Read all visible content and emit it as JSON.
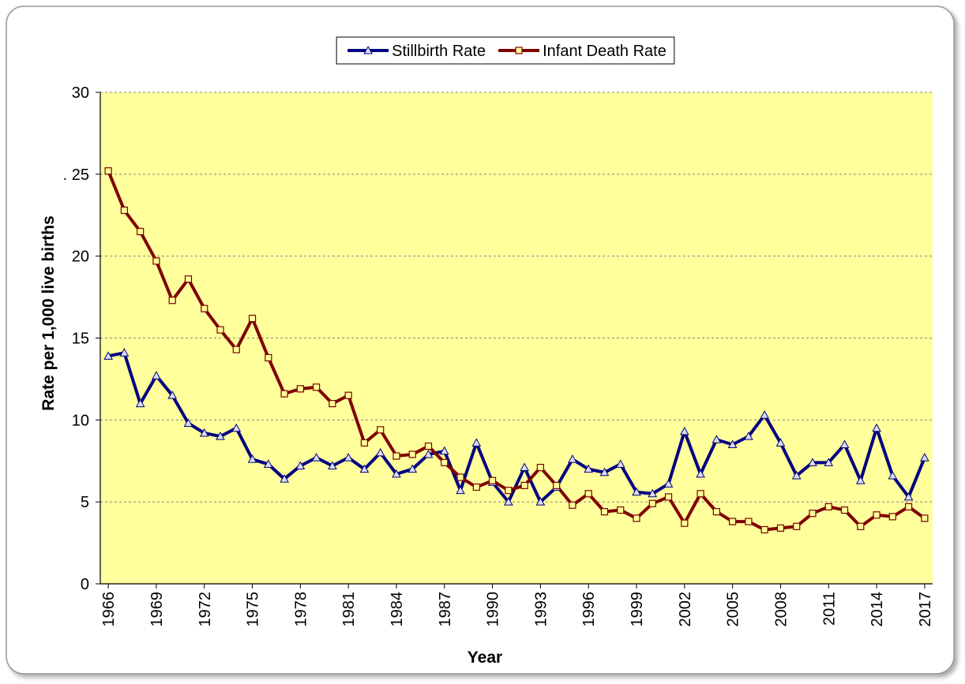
{
  "chart_data": {
    "type": "line",
    "x": [
      1966,
      1967,
      1968,
      1969,
      1970,
      1971,
      1972,
      1973,
      1974,
      1975,
      1976,
      1977,
      1978,
      1979,
      1980,
      1981,
      1982,
      1983,
      1984,
      1985,
      1986,
      1987,
      1988,
      1989,
      1990,
      1991,
      1992,
      1993,
      1994,
      1995,
      1996,
      1997,
      1998,
      1999,
      2000,
      2001,
      2002,
      2003,
      2004,
      2005,
      2006,
      2007,
      2008,
      2009,
      2010,
      2011,
      2012,
      2013,
      2014,
      2015,
      2016,
      2017
    ],
    "series": [
      {
        "name": "Stillbirth Rate",
        "color": "#000080",
        "marker": "triangle",
        "values": [
          13.9,
          14.1,
          11.0,
          12.7,
          11.5,
          9.8,
          9.2,
          9.0,
          9.5,
          7.6,
          7.3,
          6.4,
          7.2,
          7.7,
          7.2,
          7.7,
          7.0,
          8.0,
          6.7,
          7.0,
          7.9,
          8.1,
          5.7,
          8.6,
          6.2,
          5.0,
          7.1,
          5.0,
          5.9,
          7.6,
          7.0,
          6.8,
          7.3,
          5.6,
          5.5,
          6.1,
          9.3,
          6.7,
          8.8,
          8.5,
          9.0,
          10.3,
          8.6,
          6.6,
          7.4,
          7.4,
          8.5,
          6.3,
          9.5,
          6.6,
          5.3,
          7.7
        ]
      },
      {
        "name": "Infant Death Rate",
        "color": "#800000",
        "marker": "square",
        "values": [
          25.2,
          22.8,
          21.5,
          19.7,
          17.3,
          18.6,
          16.8,
          15.5,
          14.3,
          16.2,
          13.8,
          11.6,
          11.9,
          12.0,
          11.0,
          11.5,
          8.6,
          9.4,
          7.8,
          7.9,
          8.4,
          7.4,
          6.5,
          5.9,
          6.3,
          5.7,
          6.0,
          7.1,
          6.0,
          4.8,
          5.5,
          4.4,
          4.5,
          4.0,
          4.9,
          5.3,
          3.7,
          5.5,
          4.4,
          3.8,
          3.8,
          3.3,
          3.4,
          3.5,
          4.3,
          4.7,
          4.5,
          3.5,
          4.2,
          4.1,
          4.7,
          4.0
        ]
      }
    ],
    "xlabel": "Year",
    "ylabel": "Rate per 1,000 live births",
    "xlim": [
      1965.5,
      2017.5
    ],
    "xticks": [
      1966,
      1969,
      1972,
      1975,
      1978,
      1981,
      1984,
      1987,
      1990,
      1993,
      1996,
      1999,
      2002,
      2005,
      2008,
      2011,
      2014,
      2017
    ],
    "ylim": [
      0,
      30
    ],
    "yticks": [
      0,
      5,
      10,
      15,
      20,
      {
        "value": 25,
        "label": ". 25"
      },
      30
    ],
    "grid": true,
    "legend": "top",
    "plot_background": "#ffff9c"
  }
}
